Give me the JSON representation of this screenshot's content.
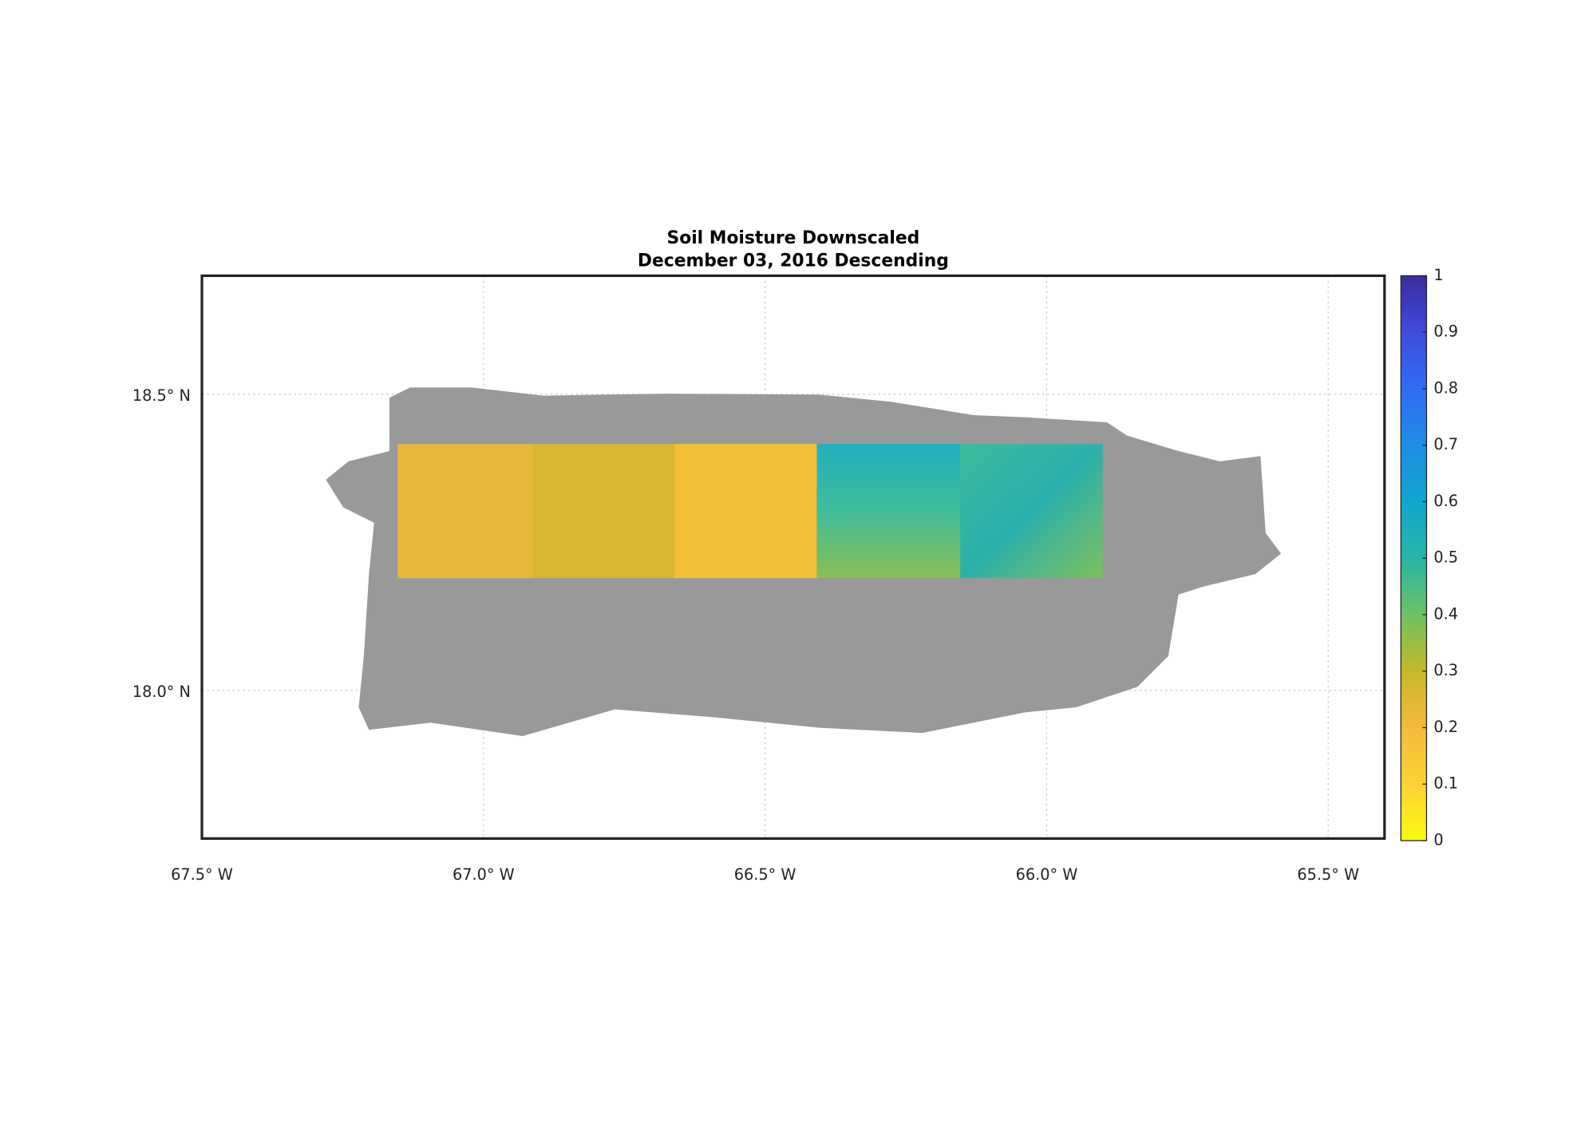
{
  "chart_data": {
    "type": "map",
    "title": "Soil Moisture Downscaled",
    "subtitle": "December 03, 2016 Descending",
    "xlim": [
      -67.5,
      -65.4
    ],
    "xticks": [
      {
        "value": -67.5,
        "label": "67.5° W"
      },
      {
        "value": -67.0,
        "label": "67.0° W"
      },
      {
        "value": -66.5,
        "label": "66.5° W"
      },
      {
        "value": -66.0,
        "label": "66.0° W"
      },
      {
        "value": -65.5,
        "label": "65.5° W"
      }
    ],
    "ylim": [
      17.75,
      18.7
    ],
    "yticks": [
      {
        "value": 18.0,
        "label": "18.0° N"
      },
      {
        "value": 18.5,
        "label": "18.5° N"
      }
    ],
    "grid": true,
    "colorbar": {
      "lim": [
        0,
        1
      ],
      "ticks": [
        0,
        0.1,
        0.2,
        0.3,
        0.4,
        0.5,
        0.6,
        0.7,
        0.8,
        0.9,
        1
      ]
    }
  }
}
